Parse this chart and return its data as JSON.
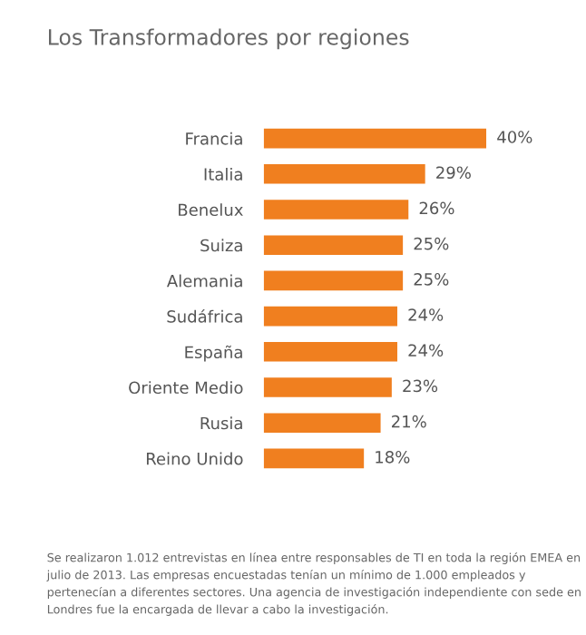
{
  "chart_data": {
    "type": "bar",
    "orientation": "horizontal",
    "title": "Los Transformadores por regiones",
    "categories": [
      "Francia",
      "Italia",
      "Benelux",
      "Suiza",
      "Alemania",
      "Sudáfrica",
      "España",
      "Oriente Medio",
      "Rusia",
      "Reino Unido"
    ],
    "values": [
      40,
      29,
      26,
      25,
      25,
      24,
      24,
      23,
      21,
      18
    ],
    "value_labels": [
      "40%",
      "29%",
      "26%",
      "25%",
      "25%",
      "24%",
      "24%",
      "23%",
      "21%",
      "18%"
    ],
    "color": "#f07f1f",
    "annotations": [
      "Se realizaron 1.012 entrevistas en línea entre responsables de TI en toda la región EMEA en julio de 2013. Las empresas encuestadas tenían un mínimo de 1.000 empleados y pertenecían a diferentes sectores. Una agencia de investigación independiente con sede en Londres fue la encargada de llevar a cabo la investigación."
    ]
  }
}
